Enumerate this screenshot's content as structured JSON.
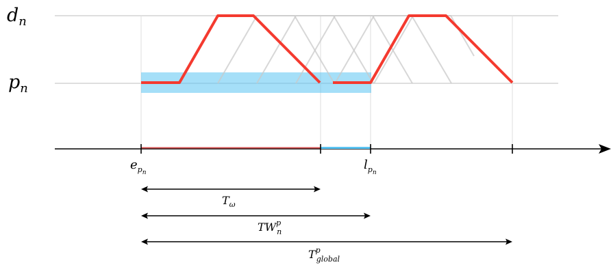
{
  "labels": {
    "level_top": "d",
    "level_top_sub": "n",
    "level_bottom": "p",
    "level_bottom_sub": "n",
    "tick_start": "e",
    "tick_start_sub": "p",
    "tick_start_subsub": "n",
    "tick_end": "l",
    "tick_end_sub": "p",
    "tick_end_subsub": "n"
  },
  "intervals": [
    {
      "symbol": "T",
      "sub": "ω",
      "sup": ""
    },
    {
      "symbol": "TW",
      "sub": "n",
      "sup": "p"
    },
    {
      "symbol": "T",
      "sub": "global",
      "sup": "p"
    }
  ],
  "colors": {
    "trajectory": "#f43a2f",
    "time_window": "#5bc4f3",
    "grid": "#d4d4d4",
    "hatch": "#c9c9c9",
    "axis": "#000000"
  }
}
